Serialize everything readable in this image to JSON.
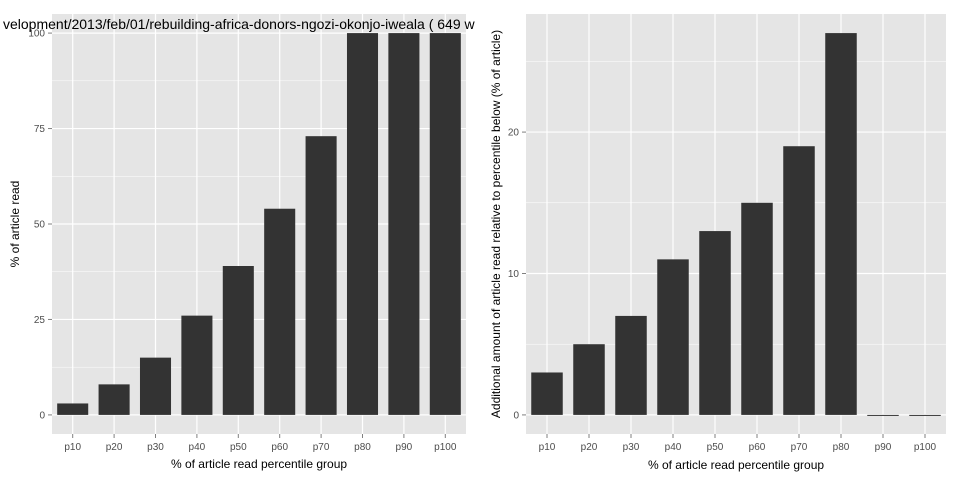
{
  "page_title": "velopment/2013/feb/01/rebuilding-africa-donors-ngozi-okonjo-iweala ( 649 w",
  "colors": {
    "panel_background": "#e5e5e5",
    "grid": "#ffffff",
    "bar": "#333333"
  },
  "chart_data": [
    {
      "type": "bar",
      "categories": [
        "p10",
        "p20",
        "p30",
        "p40",
        "p50",
        "p60",
        "p70",
        "p80",
        "p90",
        "p100"
      ],
      "values": [
        3,
        8,
        15,
        26,
        39,
        54,
        73,
        100,
        100,
        100
      ],
      "xlabel": "% of article read percentile group",
      "ylabel": "% of article read",
      "ylim": [
        -5,
        105
      ],
      "yticks": [
        "0",
        "25",
        "50",
        "75",
        "100"
      ],
      "grid": true,
      "legend": "none"
    },
    {
      "type": "bar",
      "categories": [
        "p10",
        "p20",
        "p30",
        "p40",
        "p50",
        "p60",
        "p70",
        "p80",
        "p90",
        "p100"
      ],
      "values": [
        3,
        5,
        7,
        11,
        13,
        15,
        19,
        27,
        0,
        0
      ],
      "xlabel": "% of article read percentile group",
      "ylabel": "Additional amount of article read relative to percentile below (% of article)",
      "ylim": [
        -1.35,
        28.35
      ],
      "yticks": [
        "0",
        "10",
        "20"
      ],
      "grid": true,
      "legend": "none"
    }
  ]
}
